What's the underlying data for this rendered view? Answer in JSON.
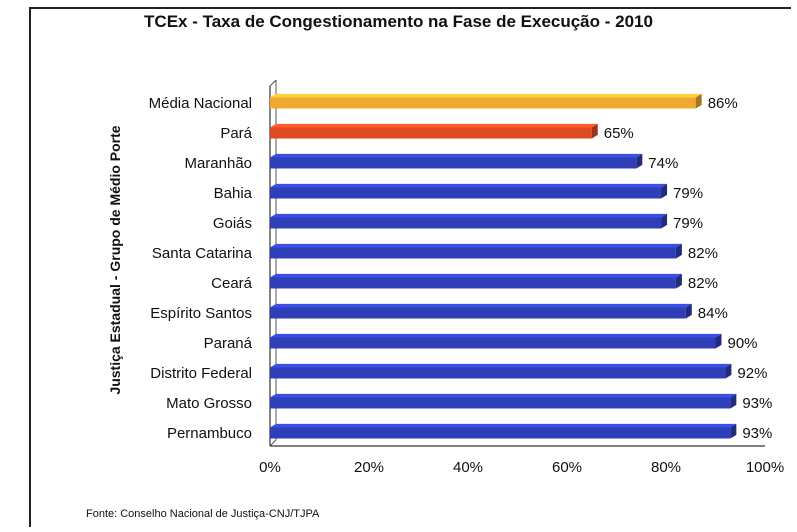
{
  "chart_data": {
    "type": "bar",
    "orientation": "horizontal",
    "title": "TCEx - Taxa de Congestionamento na Fase de Execução - 2010",
    "ylabel": "Justiça Estadual - Grupo de Médio Porte",
    "xlabel": "",
    "xlim": [
      0,
      100
    ],
    "xticks": [
      "0%",
      "20%",
      "40%",
      "60%",
      "80%",
      "100%"
    ],
    "grid": false,
    "categories": [
      "Média Nacional",
      "Pará",
      "Maranhão",
      "Bahia",
      "Goiás",
      "Santa Catarina",
      "Ceará",
      "Espírito Santos",
      "Paraná",
      "Distrito Federal",
      "Mato Grosso",
      "Pernambuco"
    ],
    "values": [
      86,
      65,
      74,
      79,
      79,
      82,
      82,
      84,
      90,
      92,
      93,
      93
    ],
    "value_labels": [
      "86%",
      "65%",
      "74%",
      "79%",
      "79%",
      "82%",
      "82%",
      "84%",
      "90%",
      "92%",
      "93%",
      "93%"
    ],
    "colors": [
      "#f0a830",
      "#e04a22",
      "#2f3fb8",
      "#2f3fb8",
      "#2f3fb8",
      "#2f3fb8",
      "#2f3fb8",
      "#2f3fb8",
      "#2f3fb8",
      "#2f3fb8",
      "#2f3fb8",
      "#2f3fb8"
    ]
  },
  "source": "Fonte: Conselho Nacional de Justiça-CNJ/TJPA"
}
